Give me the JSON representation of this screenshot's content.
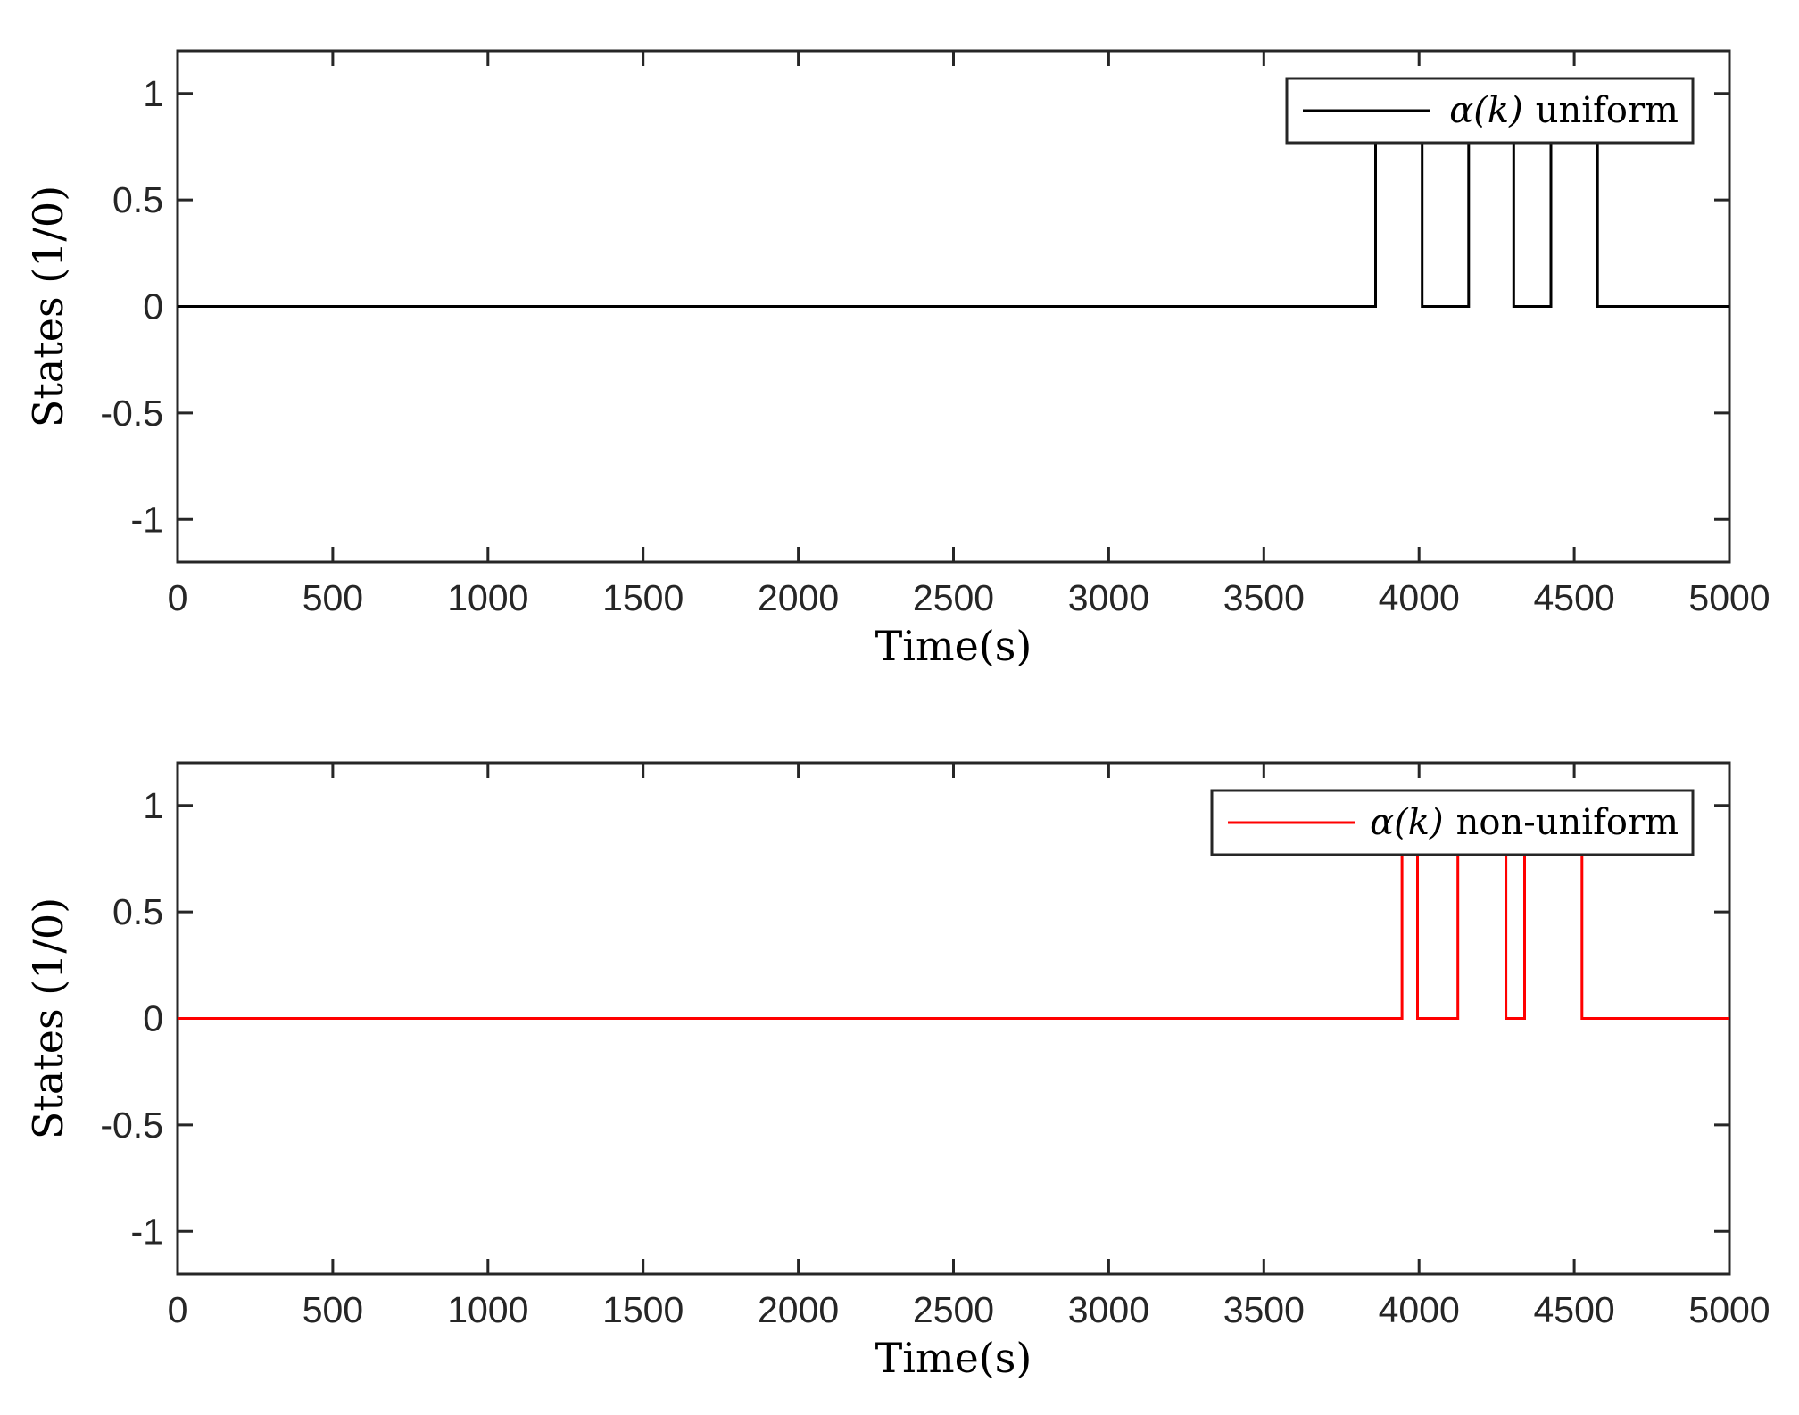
{
  "chart_data": [
    {
      "type": "line",
      "xlabel": "Time(s)",
      "ylabel": "States (1/0)",
      "xlim": [
        0,
        5000
      ],
      "ylim": [
        -1.2,
        1.2
      ],
      "xticks": [
        0,
        500,
        1000,
        1500,
        2000,
        2500,
        3000,
        3500,
        4000,
        4500,
        5000
      ],
      "yticks": [
        1,
        0.5,
        0,
        -0.5,
        -1
      ],
      "ytick_labels": [
        "1",
        "0.5",
        "0",
        "-0.5",
        "-1"
      ],
      "grid": false,
      "legend_position": "top-right",
      "series": [
        {
          "name_prefix": "α(k)",
          "name_suffix": "uniform",
          "color": "#000000",
          "x": [
            0,
            3860,
            3860,
            4010,
            4010,
            4160,
            4160,
            4305,
            4305,
            4425,
            4425,
            4575,
            4575,
            5000
          ],
          "y": [
            0,
            0,
            1,
            1,
            0,
            0,
            1,
            1,
            0,
            0,
            1,
            1,
            0,
            0
          ]
        }
      ]
    },
    {
      "type": "line",
      "xlabel": "Time(s)",
      "ylabel": "States (1/0)",
      "xlim": [
        0,
        5000
      ],
      "ylim": [
        -1.2,
        1.2
      ],
      "xticks": [
        0,
        500,
        1000,
        1500,
        2000,
        2500,
        3000,
        3500,
        4000,
        4500,
        5000
      ],
      "yticks": [
        1,
        0.5,
        0,
        -0.5,
        -1
      ],
      "ytick_labels": [
        "1",
        "0.5",
        "0",
        "-0.5",
        "-1"
      ],
      "grid": false,
      "legend_position": "top-right",
      "series": [
        {
          "name_prefix": "α(k)",
          "name_suffix": "non-uniform",
          "color": "#ff0000",
          "x": [
            0,
            3945,
            3945,
            3995,
            3995,
            4125,
            4125,
            4280,
            4280,
            4340,
            4340,
            4525,
            4525,
            5000
          ],
          "y": [
            0,
            0,
            1,
            1,
            0,
            0,
            1,
            1,
            0,
            0,
            1,
            1,
            0,
            0
          ]
        }
      ]
    }
  ]
}
